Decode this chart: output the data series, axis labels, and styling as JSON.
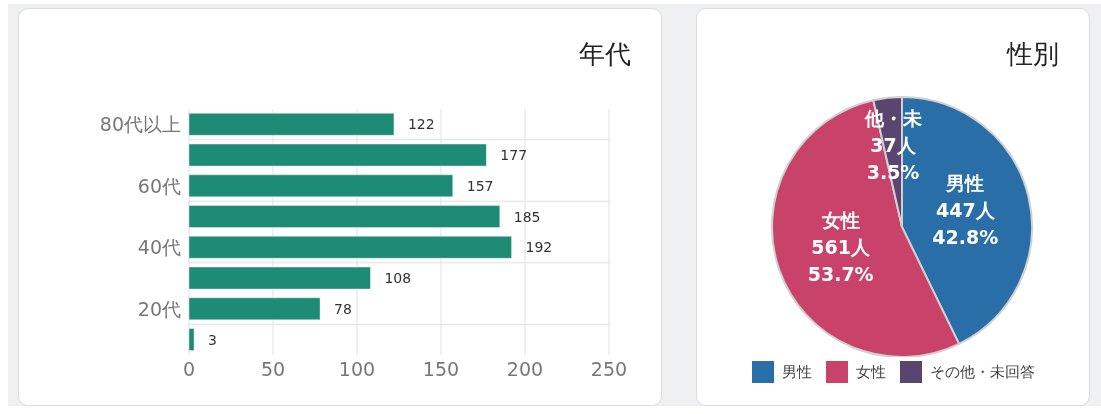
{
  "chart_data": [
    {
      "type": "bar",
      "title": "年代",
      "orientation": "horizontal",
      "categories": [
        "80代以上",
        null,
        "60代",
        null,
        "40代",
        null,
        "20代",
        null
      ],
      "values": [
        122,
        177,
        157,
        185,
        192,
        108,
        78,
        3
      ],
      "color": "#1e8c74",
      "xlim": [
        0,
        250
      ],
      "xticks": [
        0,
        50,
        100,
        150,
        200,
        250
      ],
      "grid": true,
      "data_labels": true
    },
    {
      "type": "pie",
      "title": "性別",
      "categories": [
        "男性",
        "女性",
        "その他・未回答"
      ],
      "values": [
        447,
        561,
        37
      ],
      "colors": [
        "#2a6ea8",
        "#c9426a",
        "#5a4570"
      ],
      "value_labels": [
        "男性\n447人\n42.8%",
        "女性\n561人\n53.7%",
        "他・未\n37人\n3.5%"
      ],
      "legend": "bottom"
    }
  ]
}
